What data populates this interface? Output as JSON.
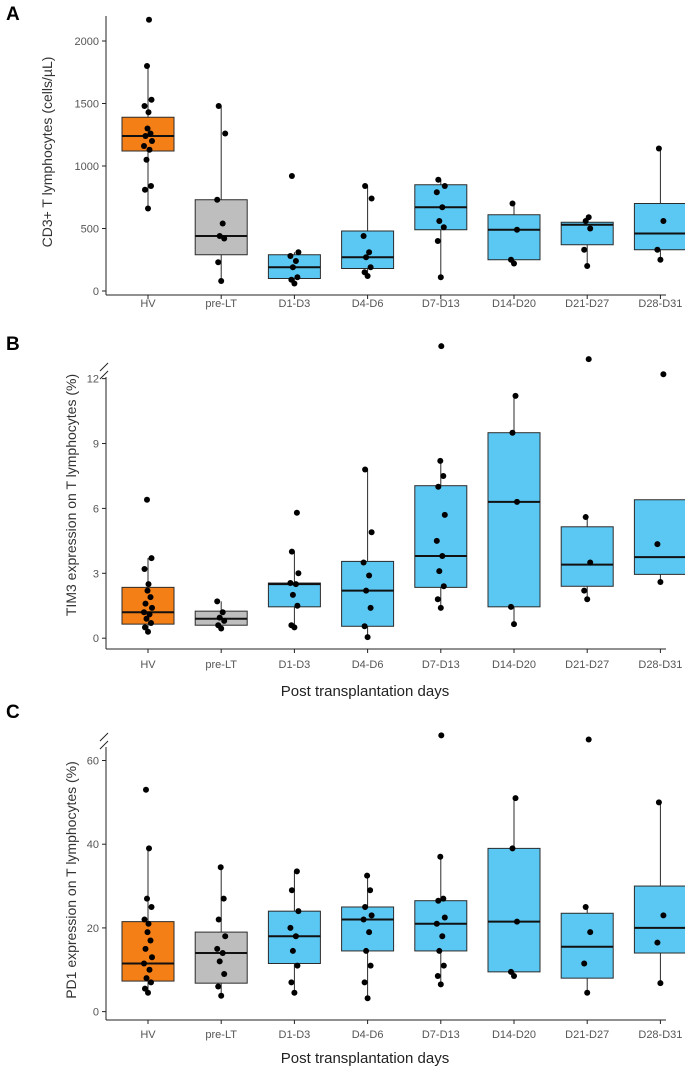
{
  "colors": {
    "hv": "#F57F17",
    "prelt": "#BEBEBE",
    "post": "#5BC8F3",
    "outline": "#2b2b2b",
    "point": "#000000"
  },
  "chart_data": [
    {
      "panel": "A",
      "type": "box",
      "title": "",
      "ylabel": "CD3+ T lymphocytes (cells/µL)",
      "xlabel": "",
      "ylim": [
        0,
        2200
      ],
      "yticks": [
        0,
        500,
        1000,
        1500,
        2000
      ],
      "ytick_labels": [
        "0",
        "500",
        "1000",
        "1500",
        "2000"
      ],
      "axis_break": false,
      "categories": [
        "HV",
        "pre-LT",
        "D1-D3",
        "D4-D6",
        "D7-D13",
        "D14-D20",
        "D21-D27",
        "D28-D31"
      ],
      "boxes": [
        {
          "category": "HV",
          "min": 660,
          "q1": 1120,
          "median": 1240,
          "q3": 1390,
          "max": 1800,
          "points": [
            660,
            810,
            840,
            1050,
            1130,
            1160,
            1200,
            1240,
            1260,
            1300,
            1430,
            1480,
            1530,
            1800,
            2170
          ]
        },
        {
          "category": "pre-LT",
          "min": 80,
          "q1": 290,
          "median": 440,
          "q3": 730,
          "max": 1480,
          "points": [
            80,
            230,
            420,
            440,
            540,
            730,
            1260,
            1480
          ]
        },
        {
          "category": "D1-D3",
          "min": 60,
          "q1": 100,
          "median": 190,
          "q3": 290,
          "max": 310,
          "points": [
            60,
            90,
            110,
            190,
            240,
            280,
            310,
            920
          ]
        },
        {
          "category": "D4-D6",
          "min": 120,
          "q1": 180,
          "median": 270,
          "q3": 480,
          "max": 840,
          "points": [
            120,
            150,
            190,
            270,
            310,
            440,
            740,
            840
          ]
        },
        {
          "category": "D7-D13",
          "min": 110,
          "q1": 490,
          "median": 670,
          "q3": 850,
          "max": 890,
          "points": [
            110,
            400,
            510,
            560,
            670,
            790,
            840,
            890
          ]
        },
        {
          "category": "D14-D20",
          "min": 220,
          "q1": 250,
          "median": 490,
          "q3": 610,
          "max": 710,
          "points": [
            220,
            250,
            490,
            700
          ]
        },
        {
          "category": "D21-D27",
          "min": 200,
          "q1": 370,
          "median": 530,
          "q3": 550,
          "max": 590,
          "points": [
            200,
            330,
            500,
            560,
            590
          ]
        },
        {
          "category": "D28-D31",
          "min": 250,
          "q1": 330,
          "median": 460,
          "q3": 700,
          "max": 1140,
          "points": [
            250,
            330,
            560,
            1140
          ]
        }
      ]
    },
    {
      "panel": "B",
      "type": "box",
      "title": "",
      "ylabel": "TIM3 expression on T lymphocytes (%)",
      "xlabel": "Post transplantation days",
      "ylim": [
        -0.5,
        13
      ],
      "yticks": [
        0,
        3,
        6,
        9,
        12
      ],
      "ytick_labels": [
        "0",
        "3",
        "6",
        "9",
        "12"
      ],
      "axis_break": true,
      "categories": [
        "HV",
        "pre-LT",
        "D1-D3",
        "D4-D6",
        "D7-D13",
        "D14-D20",
        "D21-D27",
        "D28-D31"
      ],
      "boxes": [
        {
          "category": "HV",
          "min": 0.3,
          "q1": 0.65,
          "median": 1.2,
          "q3": 2.35,
          "max": 3.7,
          "points": [
            0.3,
            0.5,
            0.7,
            0.9,
            1.1,
            1.2,
            1.4,
            1.6,
            1.9,
            2.2,
            2.5,
            3.2,
            3.7,
            6.4
          ]
        },
        {
          "category": "pre-LT",
          "min": 0.45,
          "q1": 0.6,
          "median": 0.9,
          "q3": 1.25,
          "max": 1.7,
          "points": [
            0.45,
            0.6,
            0.8,
            0.95,
            1.2,
            1.7
          ]
        },
        {
          "category": "D1-D3",
          "min": 0.5,
          "q1": 1.45,
          "median": 2.5,
          "q3": 2.55,
          "max": 4.0,
          "points": [
            0.5,
            0.6,
            1.5,
            2.0,
            2.5,
            2.55,
            3.0,
            4.0,
            5.8
          ]
        },
        {
          "category": "D4-D6",
          "min": 0.05,
          "q1": 0.55,
          "median": 2.2,
          "q3": 3.55,
          "max": 7.8,
          "points": [
            0.05,
            0.55,
            1.4,
            2.2,
            2.9,
            3.5,
            4.9,
            7.8
          ]
        },
        {
          "category": "D7-D13",
          "min": 1.4,
          "q1": 2.35,
          "median": 3.8,
          "q3": 7.05,
          "max": 8.2,
          "points": [
            1.4,
            1.8,
            2.4,
            3.1,
            3.8,
            4.5,
            5.7,
            7.0,
            7.5,
            8.2,
            13.5
          ]
        },
        {
          "category": "D14-D20",
          "min": 0.65,
          "q1": 1.45,
          "median": 6.3,
          "q3": 9.5,
          "max": 11.2,
          "points": [
            0.65,
            1.45,
            6.3,
            9.5,
            11.2
          ]
        },
        {
          "category": "D21-D27",
          "min": 1.8,
          "q1": 2.4,
          "median": 3.4,
          "q3": 5.15,
          "max": 5.6,
          "points": [
            1.8,
            2.2,
            3.5,
            5.6,
            12.9
          ]
        },
        {
          "category": "D28-D31",
          "min": 2.6,
          "q1": 2.95,
          "median": 3.75,
          "q3": 6.4,
          "max": 6.4,
          "points": [
            2.6,
            4.35,
            12.2
          ]
        }
      ]
    },
    {
      "panel": "C",
      "type": "box",
      "title": "",
      "ylabel": "PD1 expression on T lymphocytes (%)",
      "xlabel": "Post transplantation days",
      "ylim": [
        -2,
        68
      ],
      "yticks": [
        0,
        20,
        40,
        60
      ],
      "ytick_labels": [
        "0",
        "20",
        "40",
        "60"
      ],
      "axis_break": true,
      "categories": [
        "HV",
        "pre-LT",
        "D1-D3",
        "D4-D6",
        "D7-D13",
        "D14-D20",
        "D21-D27",
        "D28-D31"
      ],
      "boxes": [
        {
          "category": "HV",
          "min": 4.5,
          "q1": 7.3,
          "median": 11.5,
          "q3": 21.5,
          "max": 39.0,
          "points": [
            4.5,
            5.5,
            7.0,
            8.0,
            10.0,
            11.5,
            13.0,
            15.0,
            17.0,
            19.0,
            21.0,
            22.0,
            25.0,
            27.0,
            39.0,
            53.0
          ]
        },
        {
          "category": "pre-LT",
          "min": 3.8,
          "q1": 6.8,
          "median": 14.0,
          "q3": 19.0,
          "max": 34.5,
          "points": [
            3.8,
            6.0,
            9.0,
            12.0,
            14.0,
            15.0,
            18.0,
            22.0,
            27.0,
            34.5
          ]
        },
        {
          "category": "D1-D3",
          "min": 4.5,
          "q1": 11.5,
          "median": 18.0,
          "q3": 24.0,
          "max": 33.5,
          "points": [
            4.5,
            7.0,
            11.0,
            14.5,
            18.0,
            20.0,
            24.0,
            29.0,
            33.5
          ]
        },
        {
          "category": "D4-D6",
          "min": 3.2,
          "q1": 14.5,
          "median": 22.0,
          "q3": 25.0,
          "max": 32.5,
          "points": [
            3.2,
            7.0,
            11.0,
            14.5,
            19.0,
            22.0,
            23.0,
            25.0,
            29.0,
            32.5
          ]
        },
        {
          "category": "D7-D13",
          "min": 6.5,
          "q1": 14.5,
          "median": 21.0,
          "q3": 26.5,
          "max": 37.0,
          "points": [
            6.5,
            8.5,
            11.0,
            14.5,
            18.0,
            21.0,
            22.5,
            26.5,
            27.0,
            37.0,
            66.0
          ]
        },
        {
          "category": "D14-D20",
          "min": 8.5,
          "q1": 9.5,
          "median": 21.5,
          "q3": 39.0,
          "max": 51.0,
          "points": [
            8.5,
            9.5,
            21.5,
            39.0,
            51.0
          ]
        },
        {
          "category": "D21-D27",
          "min": 4.5,
          "q1": 8.0,
          "median": 15.5,
          "q3": 23.5,
          "max": 25.0,
          "points": [
            4.5,
            11.5,
            19.0,
            25.0,
            65.0
          ]
        },
        {
          "category": "D28-D31",
          "min": 6.8,
          "q1": 14.0,
          "median": 20.0,
          "q3": 30.0,
          "max": 50.0,
          "points": [
            6.8,
            16.5,
            23.0,
            50.0
          ]
        }
      ]
    }
  ]
}
